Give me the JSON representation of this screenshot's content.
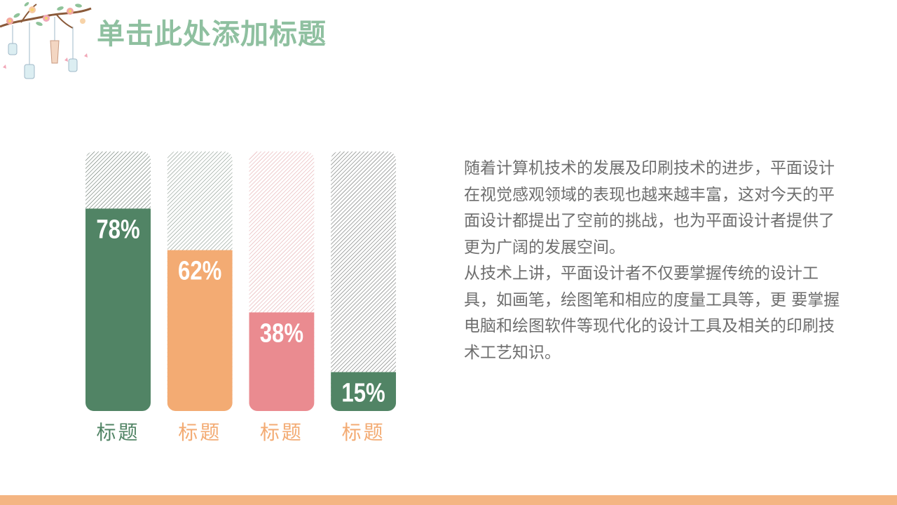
{
  "slide": {
    "title": "单击此处添加标题",
    "paragraphs": [
      "随着计算机技术的发展及印刷技术的进步，平面设计在视觉感观领域的表现也越来越丰富，这对今天的平面设计都提出了空前的挑战，也为平面设计者提供了更为广阔的发展空间。",
      "从技术上讲，平面设计者不仅要掌握传统的设计工具，如画笔，绘图笔和相应的度量工具等，更 要掌握电脑和绘图软件等现代化的设计工具及相关的印刷技术工艺知识。"
    ]
  },
  "colors": {
    "title": "#8fc0a0",
    "body_text": "#6e6e6e",
    "bottom_bar": "#f4b582"
  },
  "chart_data": {
    "type": "bar",
    "orientation": "vertical",
    "ylim": [
      0,
      100
    ],
    "grid": false,
    "legend": "none",
    "categories": [
      "标题",
      "标题",
      "标题",
      "标题"
    ],
    "values": [
      78,
      62,
      38,
      15
    ],
    "data_labels": [
      "78%",
      "62%",
      "38%",
      "15%"
    ],
    "bar_colors": [
      "#518465",
      "#f3ab73",
      "#ea8b90",
      "#518465"
    ],
    "background_colors": [
      "#56675c",
      "#7d8f84",
      "#e2a3a6",
      "#5f6361"
    ],
    "label_colors": [
      "#518465",
      "#f3ab73",
      "#f3ab73",
      "#f3ab73"
    ]
  }
}
